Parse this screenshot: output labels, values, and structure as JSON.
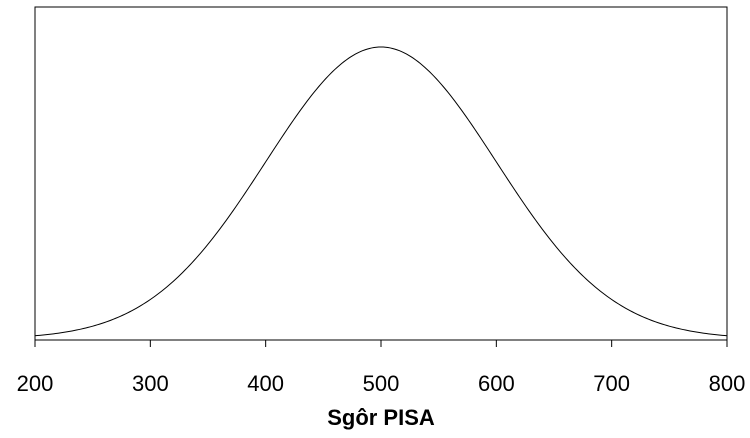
{
  "chart_data": {
    "type": "line",
    "title": "",
    "xlabel": "Sgôr PISA",
    "ylabel": "",
    "xlim": [
      200,
      800
    ],
    "x_ticks": [
      200,
      300,
      400,
      500,
      600,
      700,
      800
    ],
    "x_tick_labels": [
      "200",
      "300",
      "400",
      "500",
      "600",
      "700",
      "800"
    ],
    "grid": false,
    "legend": "none",
    "series": [
      {
        "distribution": "normal",
        "mean": 500,
        "sd": 100,
        "line_color": "#000000"
      }
    ]
  }
}
